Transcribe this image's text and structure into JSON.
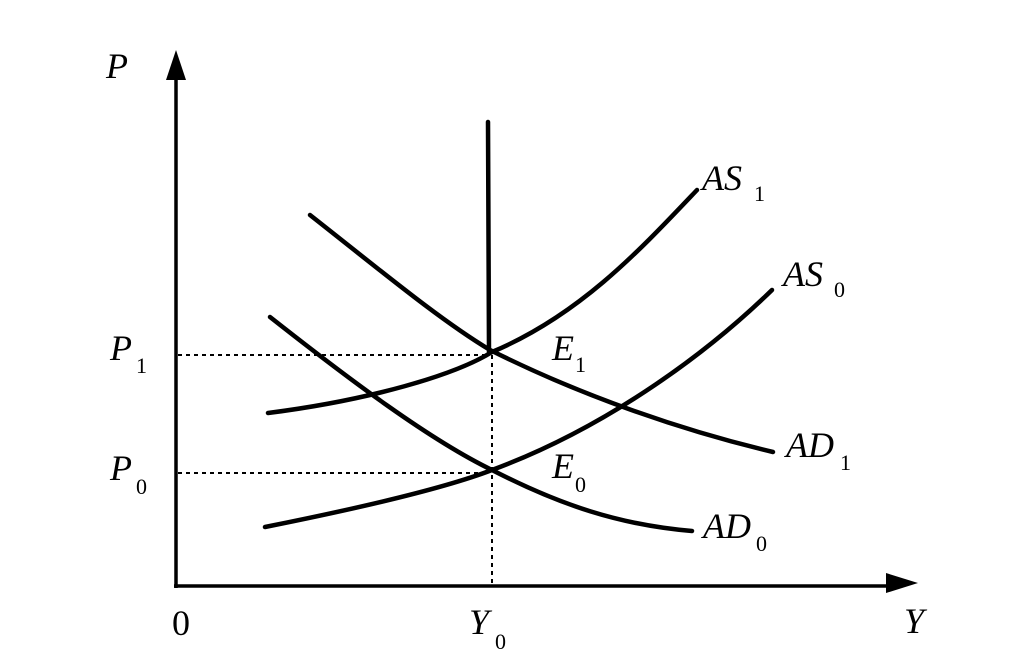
{
  "axes": {
    "y_label": "P",
    "x_label": "Y",
    "origin_label": "0"
  },
  "ticks": {
    "p1": {
      "main": "P",
      "sub": "1"
    },
    "p0": {
      "main": "P",
      "sub": "0"
    },
    "y0": {
      "main": "Y",
      "sub": "0"
    }
  },
  "curves": {
    "as1": {
      "main": "AS",
      "sub": "1"
    },
    "as0": {
      "main": "AS",
      "sub": "0"
    },
    "ad1": {
      "main": "AD",
      "sub": "1"
    },
    "ad0": {
      "main": "AD",
      "sub": "0"
    }
  },
  "points": {
    "e1": {
      "main": "E",
      "sub": "1"
    },
    "e0": {
      "main": "E",
      "sub": "0"
    }
  }
}
